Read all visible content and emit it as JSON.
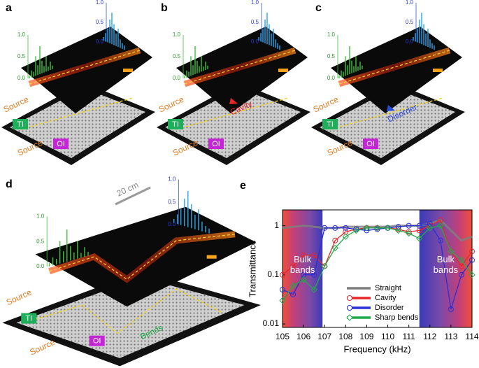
{
  "illustrations": [
    {
      "label": "a",
      "source": "Source",
      "ti": "TI",
      "oi": "OI",
      "ticks": [
        "1.0",
        "0.5",
        "0.0"
      ]
    },
    {
      "label": "b",
      "source": "Source",
      "ti": "TI",
      "oi": "OI",
      "defect": "Cavity",
      "ticks": [
        "1.0",
        "0.5",
        "0.0"
      ]
    },
    {
      "label": "c",
      "source": "Source",
      "ti": "TI",
      "oi": "OI",
      "defect": "Disorder",
      "ticks": [
        "1.0",
        "0.5",
        "0.0"
      ]
    },
    {
      "label": "d",
      "source": "Source",
      "ti": "TI",
      "oi": "OI",
      "defect": "Bends",
      "scale": "20 cm",
      "ticks": [
        "1.0",
        "0.5",
        "0.0"
      ]
    }
  ],
  "chart_data": {
    "type": "line",
    "panel_label": "e",
    "x_label": "Frequency (kHz)",
    "y_label": "Transmittance",
    "x": [
      105,
      105.5,
      106,
      106.5,
      107,
      107.5,
      108,
      108.5,
      109,
      109.5,
      110,
      110.5,
      111,
      111.5,
      112,
      112.5,
      113,
      113.5,
      114
    ],
    "series": [
      {
        "name": "Straight",
        "color": "#7f7f7f",
        "marker": "none",
        "values": [
          0.9,
          0.95,
          1.0,
          0.95,
          0.9,
          0.9,
          0.95,
          0.95,
          0.95,
          0.95,
          0.95,
          1.0,
          1.0,
          1.0,
          1.1,
          1.3,
          0.8,
          0.5,
          0.6
        ]
      },
      {
        "name": "Cavity",
        "color": "#e8262b",
        "marker": "circle",
        "values": [
          0.1,
          0.15,
          0.25,
          0.25,
          0.15,
          0.5,
          0.75,
          0.85,
          0.9,
          0.9,
          0.9,
          0.85,
          0.75,
          0.8,
          1.0,
          1.3,
          0.3,
          0.15,
          0.3
        ]
      },
      {
        "name": "Disorder",
        "color": "#2a2fd6",
        "marker": "circle",
        "values": [
          0.05,
          0.04,
          0.1,
          0.1,
          0.9,
          0.9,
          0.9,
          0.85,
          0.8,
          0.85,
          0.9,
          0.95,
          1.0,
          1.0,
          1.1,
          0.5,
          0.02,
          0.1,
          0.2
        ]
      },
      {
        "name": "Sharp bends",
        "color": "#22a84a",
        "marker": "diamond",
        "values": [
          0.03,
          0.06,
          0.08,
          0.05,
          0.15,
          0.35,
          0.6,
          0.8,
          0.9,
          0.9,
          0.9,
          0.8,
          0.7,
          0.55,
          0.9,
          1.0,
          0.3,
          0.2,
          0.1
        ]
      }
    ],
    "shaded_regions": [
      {
        "x": [
          105,
          106.9
        ],
        "label": "Bulk bands"
      },
      {
        "x": [
          111.5,
          114
        ],
        "label": "Bulk bands"
      }
    ],
    "xlim": [
      105,
      114
    ],
    "xticks": [
      105,
      106,
      107,
      108,
      109,
      110,
      111,
      112,
      113,
      114
    ],
    "ylim": [
      0.0085,
      2.1
    ],
    "yticks": [
      0.01,
      0.1,
      1
    ],
    "log_y": true,
    "grid": false
  }
}
